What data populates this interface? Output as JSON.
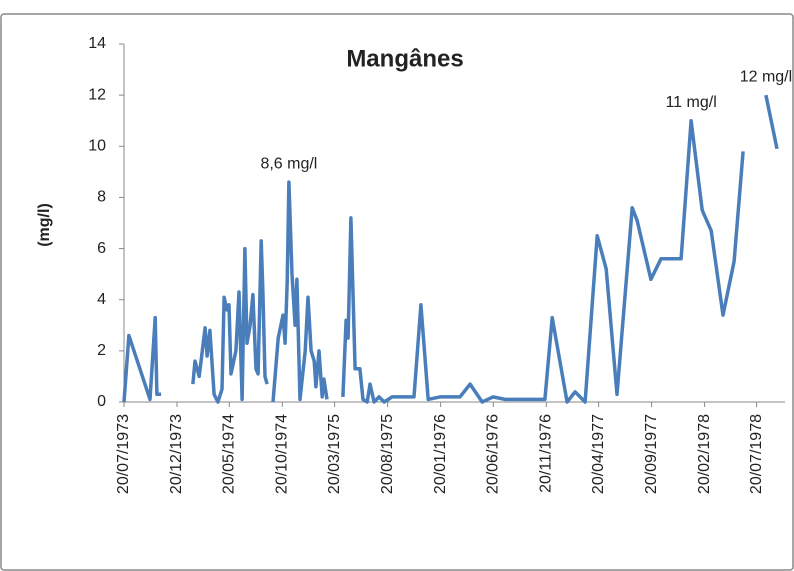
{
  "chart_data": {
    "type": "line",
    "title": "Mangânes",
    "y_label": "(mg/l)",
    "color": "#4a7ebb",
    "grid": false,
    "x": [
      "20/07/1973",
      "03/08/1973",
      "03/10/1973",
      "18/10/1973",
      "23/10/1973",
      "04/11/1973",
      null,
      "04/02/1974",
      "10/02/1974",
      "22/02/1974",
      "11/03/1974",
      "17/03/1974",
      "25/03/1974",
      "06/04/1974",
      "17/04/1974",
      "29/04/1974",
      "05/05/1974",
      "13/05/1974",
      "19/05/1974",
      "25/05/1974",
      "08/06/1974",
      "17/06/1974",
      "26/06/1974",
      "04/07/1974",
      "10/07/1974",
      "19/07/1974",
      "27/07/1974",
      "05/08/1974",
      "11/08/1974",
      "20/08/1974",
      "25/08/1974",
      "31/08/1974",
      "06/09/1974",
      null,
      "23/09/1974",
      "08/10/1974",
      "22/10/1974",
      "28/10/1974",
      "03/11/1974",
      "08/11/1974",
      "17/11/1974",
      "26/11/1974",
      "01/12/1974",
      "10/12/1974",
      "25/12/1974",
      "02/01/1975",
      "11/01/1975",
      "20/01/1975",
      "25/01/1975",
      "03/02/1975",
      "12/02/1975",
      "17/02/1975",
      "26/02/1975",
      null,
      "13/04/1975",
      "22/04/1975",
      "28/04/1975",
      "06/05/1975",
      "18/05/1975",
      "01/06/1975",
      "10/06/1975",
      "22/06/1975",
      "30/06/1975",
      "12/07/1975",
      "26/07/1975",
      "10/08/1975",
      "02/09/1975",
      "25/09/1975",
      "04/11/1975",
      "24/11/1975",
      "15/12/1975",
      "18/01/1976",
      "16/03/1976",
      "14/04/1976",
      "19/05/1976",
      "19/06/1976",
      "24/07/1976",
      "04/10/1976",
      "16/11/1976",
      "07/12/1976",
      "19/01/1977",
      "11/02/1977",
      "12/03/1977",
      "16/04/1977",
      "12/05/1977",
      "12/06/1977",
      "26/07/1977",
      "09/08/1977",
      "18/09/1977",
      "17/10/1977",
      "14/12/1977",
      "12/01/1978",
      "13/02/1978",
      "11/03/1978",
      "14/04/1978",
      "16/05/1978",
      "11/06/1978",
      null,
      "16/08/1978",
      "17/09/1978"
    ],
    "values": [
      0,
      2.6,
      0.1,
      3.3,
      0.3,
      0.3,
      null,
      0.7,
      1.6,
      1.0,
      2.9,
      1.8,
      2.8,
      0.3,
      0,
      0.5,
      4.1,
      3.6,
      3.8,
      1.1,
      2.0,
      4.3,
      0.1,
      6.0,
      2.3,
      3.0,
      4.2,
      1.3,
      1.1,
      6.3,
      4.3,
      1.0,
      0.7,
      null,
      0,
      2.5,
      3.4,
      2.3,
      4.7,
      8.6,
      5.0,
      3.0,
      4.8,
      0.1,
      2.0,
      4.1,
      2.0,
      1.6,
      0.6,
      2.0,
      0.2,
      0.9,
      0.1,
      null,
      0.2,
      3.2,
      2.5,
      7.2,
      1.3,
      1.3,
      0.1,
      0,
      0.7,
      0,
      0.2,
      0,
      0.2,
      0.2,
      0.2,
      3.8,
      0.1,
      0.2,
      0.2,
      0.7,
      0,
      0.2,
      0.1,
      0.1,
      0.1,
      3.3,
      0,
      0.4,
      0,
      6.5,
      5.2,
      0.3,
      7.6,
      7.1,
      4.8,
      5.6,
      5.6,
      11.0,
      7.5,
      6.7,
      3.4,
      5.5,
      9.8,
      null,
      12.0,
      9.9
    ],
    "xlim": [
      "20/07/1973",
      "10/10/1978"
    ],
    "xticks": [
      "20/07/1973",
      "20/12/1973",
      "20/05/1974",
      "20/10/1974",
      "20/03/1975",
      "20/08/1975",
      "20/01/1976",
      "20/06/1976",
      "20/11/1976",
      "20/04/1977",
      "20/09/1977",
      "20/02/1978",
      "20/07/1978"
    ],
    "ylim": [
      0,
      14
    ],
    "yticks": [
      0,
      2,
      4,
      6,
      8,
      10,
      12,
      14
    ],
    "annotations": [
      {
        "text": "8,6 mg/l",
        "x": "08/11/1974",
        "y": 8.6
      },
      {
        "text": "11 mg/l",
        "x": "12/01/1978",
        "y": 11.0
      },
      {
        "text": "12 mg/l",
        "x": "16/08/1978",
        "y": 12.0
      }
    ]
  }
}
